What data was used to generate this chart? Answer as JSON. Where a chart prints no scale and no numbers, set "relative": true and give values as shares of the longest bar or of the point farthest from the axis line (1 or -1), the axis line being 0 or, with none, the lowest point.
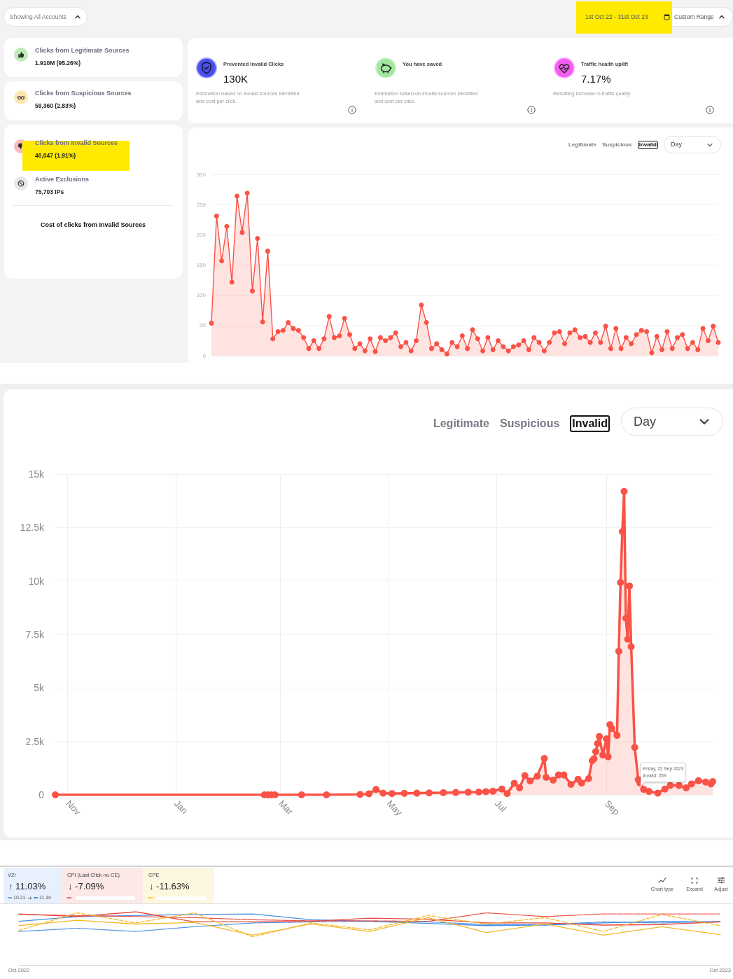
{
  "chart_data": [
    {
      "type": "other",
      "annotations": [
        "Showing All Accounts",
        "1st Oct 22 - 31st Oct 23",
        "Custom Range"
      ]
    },
    {
      "type": "other",
      "title": "Clicks from Legitimate Sources",
      "annotations": [
        "1.910M (95.26%)"
      ]
    },
    {
      "type": "other",
      "title": "Clicks from Suspicious Sources",
      "annotations": [
        "59,360 (2.83%)"
      ]
    },
    {
      "type": "other",
      "title": "Clicks from Invalid Sources",
      "annotations": [
        "40,047 (1.91%)"
      ]
    },
    {
      "type": "other",
      "title": "Active Exclusions",
      "annotations": [
        "75,703 IPs"
      ]
    },
    {
      "type": "other",
      "title": "Cost of clicks from Invalid Sources"
    },
    {
      "type": "other",
      "title": "Prevented Invalid Clicks",
      "annotations": [
        "130K",
        "Estimation based on invalid sources identified and cost per click."
      ]
    },
    {
      "type": "other",
      "title": "You have saved",
      "annotations": [
        "Estimation based on invalid sources identified and cost per click."
      ]
    },
    {
      "type": "other",
      "title": "Traffic health uplift",
      "annotations": [
        "7.17%",
        "Resulting increase in traffic quality"
      ]
    },
    {
      "type": "other",
      "annotations": [
        "Legitimate",
        "Suspicious",
        "Invalid",
        "Day"
      ]
    },
    {
      "type": "area",
      "tick_labels": "y",
      "grid": "y",
      "marker": "circle",
      "ylim": [
        0,
        300
      ],
      "yticks": [
        0,
        50,
        100,
        150,
        200,
        250,
        300
      ],
      "categories": [
        null,
        null,
        null,
        null,
        null,
        null,
        null,
        null,
        null,
        null,
        null,
        null,
        null,
        null,
        null,
        null,
        null,
        null,
        null,
        null,
        null,
        null,
        null,
        null,
        null,
        null,
        null,
        null,
        null,
        null,
        null,
        null,
        null,
        null,
        null,
        null,
        null,
        null,
        null,
        null,
        null,
        null,
        null,
        null,
        null,
        null,
        null,
        null,
        null,
        null,
        null,
        null,
        null,
        null,
        null,
        null,
        null,
        null,
        null,
        null,
        null,
        null,
        null,
        null,
        null,
        null,
        null,
        null,
        null,
        null,
        null,
        null,
        null,
        null,
        null,
        null,
        null,
        null,
        null,
        null,
        null,
        null,
        null,
        null,
        null,
        null,
        null,
        null,
        null,
        null,
        null,
        null,
        null,
        null,
        null,
        null,
        null,
        null,
        null,
        null
      ],
      "series": [
        {
          "color": "#fa5246",
          "values": [
            54,
            231,
            157,
            214,
            122,
            264,
            204,
            269,
            107,
            194,
            56,
            173,
            28,
            40,
            42,
            55,
            45,
            42,
            30,
            12,
            25,
            12,
            28,
            65,
            30,
            33,
            62,
            35,
            12,
            20,
            8,
            28,
            7,
            30,
            25,
            30,
            38,
            15,
            22,
            8,
            25,
            84,
            55,
            12,
            20,
            10,
            3,
            22,
            15,
            33,
            12,
            43,
            28,
            8,
            30,
            10,
            25,
            15,
            8,
            15,
            18,
            25,
            10,
            30,
            22,
            8,
            22,
            38,
            40,
            20,
            38,
            43,
            30,
            32,
            22,
            38,
            22,
            49,
            12,
            45,
            12,
            30,
            20,
            35,
            42,
            40,
            5,
            32,
            10,
            40,
            12,
            30,
            35,
            12,
            22,
            10,
            45,
            25,
            49,
            22
          ]
        }
      ]
    },
    {
      "type": "other",
      "annotations": [
        "Legitimate",
        "Suspicious",
        "Invalid",
        "Day"
      ]
    },
    {
      "type": "area",
      "grid": true,
      "marker": "circle",
      "xlim": [
        "2022-10-25",
        "2023-10-31"
      ],
      "xticks": [
        {
          "value": "2022-11-01",
          "label": "Nov"
        },
        {
          "value": "2023-01-01",
          "label": "Jan"
        },
        {
          "value": "2023-03-01",
          "label": "Mar"
        },
        {
          "value": "2023-05-01",
          "label": "May"
        },
        {
          "value": "2023-07-01",
          "label": "Jul"
        },
        {
          "value": "2023-09-01",
          "label": "Sep"
        }
      ],
      "ylim": [
        0,
        15000
      ],
      "yticks": [
        0,
        {
          "value": 2500,
          "label": "2.5k"
        },
        {
          "value": 5000,
          "label": "5k"
        },
        {
          "value": 7500,
          "label": "7.5k"
        },
        {
          "value": 10000,
          "label": "10k"
        },
        {
          "value": 12500,
          "label": "12.5k"
        },
        {
          "value": 15000,
          "label": "15k"
        }
      ],
      "x": [
        "2022-10-25",
        "2023-02-20",
        "2023-02-22",
        "2023-02-24",
        "2023-02-26",
        "2023-03-13",
        "2023-03-27",
        "2023-04-15",
        "2023-04-20",
        "2023-04-24",
        "2023-04-28",
        "2023-05-03",
        "2023-05-10",
        "2023-05-17",
        "2023-05-24",
        "2023-06-01",
        "2023-06-08",
        "2023-06-15",
        "2023-06-21",
        "2023-06-25",
        "2023-06-29",
        "2023-07-04",
        "2023-07-07",
        "2023-07-11",
        "2023-07-14",
        "2023-07-17",
        "2023-07-20",
        "2023-07-24",
        "2023-07-28",
        "2023-07-29",
        "2023-08-02",
        "2023-08-05",
        "2023-08-08",
        "2023-08-12",
        "2023-08-16",
        "2023-08-18",
        "2023-08-22",
        "2023-08-24",
        "2023-08-25",
        "2023-08-26",
        "2023-08-27",
        "2023-08-28",
        "2023-08-30",
        "2023-09-01",
        "2023-09-02",
        "2023-09-03",
        "2023-09-04",
        "2023-09-07",
        "2023-09-08",
        "2023-09-09",
        "2023-09-10",
        "2023-09-11",
        "2023-09-12",
        "2023-09-13",
        "2023-09-14",
        "2023-09-15",
        "2023-09-17",
        "2023-09-19",
        "2023-09-20",
        "2023-09-22",
        "2023-09-25",
        "2023-09-30",
        "2023-10-04",
        "2023-10-07",
        "2023-10-12",
        "2023-10-16",
        "2023-10-19",
        "2023-10-23",
        "2023-10-27",
        "2023-10-30",
        "2023-10-31"
      ],
      "series": [
        {
          "color": "#fa5246",
          "values": [
            0,
            0,
            0,
            0,
            0,
            0,
            0,
            20,
            50,
            250,
            80,
            60,
            70,
            80,
            90,
            100,
            110,
            120,
            130,
            150,
            170,
            270,
            60,
            540,
            330,
            900,
            650,
            870,
            1700,
            820,
            690,
            930,
            930,
            490,
            730,
            550,
            760,
            1600,
            1690,
            2020,
            2400,
            2730,
            1860,
            2620,
            1780,
            3280,
            3110,
            2780,
            6710,
            9930,
            12310,
            14190,
            8260,
            7280,
            9770,
            6930,
            2220,
            710,
            550,
            259,
            160,
            80,
            270,
            440,
            440,
            330,
            510,
            660,
            600,
            510,
            620
          ]
        }
      ],
      "annotations": [
        {
          "text": "Friday, 22 Sep 2023\nInvalid: 259",
          "x": "2023-09-22",
          "y": 259
        }
      ]
    },
    {
      "type": "other",
      "title": "V2I",
      "annotations": [
        "↑ 11.03%",
        "10.21",
        "11.34"
      ]
    },
    {
      "type": "other",
      "title": "CPI (Last Click no CE)",
      "annotations": [
        "↓ -7.09%"
      ]
    },
    {
      "type": "other",
      "title": "CPE",
      "annotations": [
        "↓ -11.63%"
      ]
    },
    {
      "type": "other",
      "annotations": [
        "Chart type",
        "Expand",
        "Adjust"
      ]
    },
    {
      "type": "line",
      "relative": true,
      "marker": "none",
      "categories": [
        "Oct 2022",
        null,
        null,
        null,
        null,
        null,
        null,
        null,
        null,
        null,
        null,
        null,
        "Oct 2023"
      ],
      "series": [
        {
          "color": "#4a8fe3",
          "line_style": "solid",
          "values": [
            0.82,
            0.91,
            0.93,
            0.95,
            0.96,
            0.85,
            0.82,
            0.78,
            0.74,
            0.75,
            0.79,
            0.82,
            0.81
          ]
        },
        {
          "color": "#4a8fe3",
          "line_style": "dotted",
          "values": [
            0.63,
            0.69,
            0.63,
            0.72,
            0.79,
            0.81,
            0.82,
            0.81,
            0.76,
            0.76,
            0.81,
            0.79,
            0.82
          ]
        },
        {
          "color": "#e8483f",
          "line_style": "solid",
          "values": [
            0.96,
            0.91,
            1,
            0.81,
            0.81,
            0.82,
            0.88,
            0.86,
            0.79,
            0.79,
            0.75,
            0.76,
            0.81
          ]
        },
        {
          "color": "#e8483f",
          "line_style": "dotted",
          "values": [
            0.95,
            0.93,
            0.91,
            0.89,
            0.85,
            0.83,
            0.83,
            0.82,
            0.98,
            0.91,
            0.96,
            0.96,
            0.96
          ]
        },
        {
          "color": "#f5b82a",
          "line_style": "solid",
          "values": [
            0.74,
            0.84,
            0.77,
            0.8,
            0.56,
            0.77,
            0.63,
            0.89,
            0.61,
            0.77,
            0.56,
            0.72,
            0.57
          ]
        },
        {
          "color": "#f5b82a",
          "line_style": "dashed",
          "values": [
            0.65,
            0.98,
            0.79,
            0.98,
            0.53,
            0.79,
            0.66,
            0.93,
            0.77,
            0.89,
            0.63,
            0.95,
            0.74
          ]
        }
      ]
    }
  ]
}
